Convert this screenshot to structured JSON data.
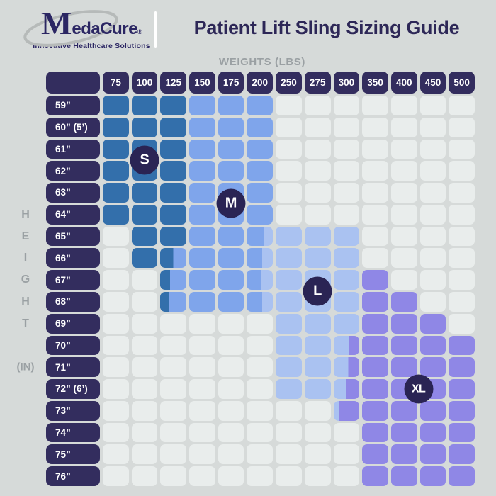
{
  "header": {
    "logo": {
      "brand_initial": "M",
      "brand_rest": "edaCure",
      "registered_mark": "®",
      "tagline": "Innovative Healthcare Solutions"
    },
    "title": "Patient Lift Sling Sizing Guide"
  },
  "axes": {
    "weights_label": "WEIGHTS (LBS)",
    "height_letters": [
      "H",
      "E",
      "I",
      "G",
      "H",
      "T"
    ],
    "height_unit": "(IN)"
  },
  "chart_data": {
    "type": "heatmap",
    "title": "Patient Lift Sling Sizing Guide",
    "xlabel": "WEIGHTS (LBS)",
    "ylabel": "HEIGHT (IN)",
    "legend_note": "S, M, L, XL size regions shown as colored cells; split cells show overlap between adjacent sizes",
    "columns": [
      "75",
      "100",
      "125",
      "150",
      "175",
      "200",
      "250",
      "275",
      "300",
      "350",
      "400",
      "450",
      "500"
    ],
    "rows": [
      {
        "label": "59”",
        "cells": [
          "S",
          "S",
          "S",
          "M",
          "M",
          "M",
          "-",
          "-",
          "-",
          "-",
          "-",
          "-",
          "-"
        ]
      },
      {
        "label": "60” (5’)",
        "cells": [
          "S",
          "S",
          "S",
          "M",
          "M",
          "M",
          "-",
          "-",
          "-",
          "-",
          "-",
          "-",
          "-"
        ]
      },
      {
        "label": "61”",
        "cells": [
          "S",
          "S",
          "S",
          "M",
          "M",
          "M",
          "-",
          "-",
          "-",
          "-",
          "-",
          "-",
          "-"
        ]
      },
      {
        "label": "62”",
        "cells": [
          "S",
          "S",
          "S",
          "M",
          "M",
          "M",
          "-",
          "-",
          "-",
          "-",
          "-",
          "-",
          "-"
        ]
      },
      {
        "label": "63”",
        "cells": [
          "S",
          "S",
          "S",
          "M",
          "M",
          "M",
          "-",
          "-",
          "-",
          "-",
          "-",
          "-",
          "-"
        ]
      },
      {
        "label": "64”",
        "cells": [
          "S",
          "S",
          "S",
          "M",
          "M",
          "M",
          "-",
          "-",
          "-",
          "-",
          "-",
          "-",
          "-"
        ]
      },
      {
        "label": "65”",
        "cells": [
          "-",
          "S",
          "S",
          "M",
          "M",
          "ML:65",
          "L",
          "L",
          "L",
          "-",
          "-",
          "-",
          "-"
        ]
      },
      {
        "label": "66”",
        "cells": [
          "-",
          "S",
          "SM:50",
          "M",
          "M",
          "ML:60",
          "L",
          "L",
          "L",
          "-",
          "-",
          "-",
          "-"
        ]
      },
      {
        "label": "67”",
        "cells": [
          "-",
          "-",
          "SM:38",
          "M",
          "M",
          "ML:55",
          "L",
          "L",
          "L",
          "X",
          "-",
          "-",
          "-"
        ]
      },
      {
        "label": "68”",
        "cells": [
          "-",
          "-",
          "SM:33",
          "M",
          "M",
          "ML:60",
          "L",
          "L",
          "L",
          "X",
          "X",
          "-",
          "-"
        ]
      },
      {
        "label": "69”",
        "cells": [
          "-",
          "-",
          "-",
          "-",
          "-",
          "-",
          "L",
          "L",
          "L",
          "X",
          "X",
          "X",
          "-"
        ]
      },
      {
        "label": "70”",
        "cells": [
          "-",
          "-",
          "-",
          "-",
          "-",
          "-",
          "L",
          "L",
          "LX:60",
          "X",
          "X",
          "X",
          "X"
        ]
      },
      {
        "label": "71”",
        "cells": [
          "-",
          "-",
          "-",
          "-",
          "-",
          "-",
          "L",
          "L",
          "LX:57",
          "X",
          "X",
          "X",
          "X"
        ]
      },
      {
        "label": "72” (6’)",
        "cells": [
          "-",
          "-",
          "-",
          "-",
          "-",
          "-",
          "L",
          "L",
          "LX:50",
          "X",
          "X",
          "X",
          "X"
        ]
      },
      {
        "label": "73”",
        "cells": [
          "-",
          "-",
          "-",
          "-",
          "-",
          "-",
          "-",
          "-",
          "LX:20",
          "X",
          "X",
          "X",
          "X"
        ]
      },
      {
        "label": "74”",
        "cells": [
          "-",
          "-",
          "-",
          "-",
          "-",
          "-",
          "-",
          "-",
          "-",
          "X",
          "X",
          "X",
          "X"
        ]
      },
      {
        "label": "75”",
        "cells": [
          "-",
          "-",
          "-",
          "-",
          "-",
          "-",
          "-",
          "-",
          "-",
          "X",
          "X",
          "X",
          "X"
        ]
      },
      {
        "label": "76”",
        "cells": [
          "-",
          "-",
          "-",
          "-",
          "-",
          "-",
          "-",
          "-",
          "-",
          "X",
          "X",
          "X",
          "X"
        ]
      }
    ],
    "size_badges": [
      {
        "label": "S",
        "col_index": 1,
        "row_index": 2.5
      },
      {
        "label": "M",
        "col_index": 4,
        "row_index": 4.5
      },
      {
        "label": "L",
        "col_index": 7,
        "row_index": 8.5
      },
      {
        "label": "XL",
        "col_index": 10.5,
        "row_index": 13
      }
    ]
  },
  "colors": {
    "page_bg": "#d6dad9",
    "size_s": "#336fab",
    "size_m": "#7fa5eb",
    "size_l": "#aac2f1",
    "size_xl": "#8f87e6",
    "empty_cell": "#e9edec",
    "header_cell_bg": "#332d5e",
    "badge_bg": "#2a2454",
    "title_text": "#2d2757",
    "muted_text": "#9aa0a3",
    "logo_navy": "#2b2663",
    "swoosh_gray": "#b6bab9"
  }
}
